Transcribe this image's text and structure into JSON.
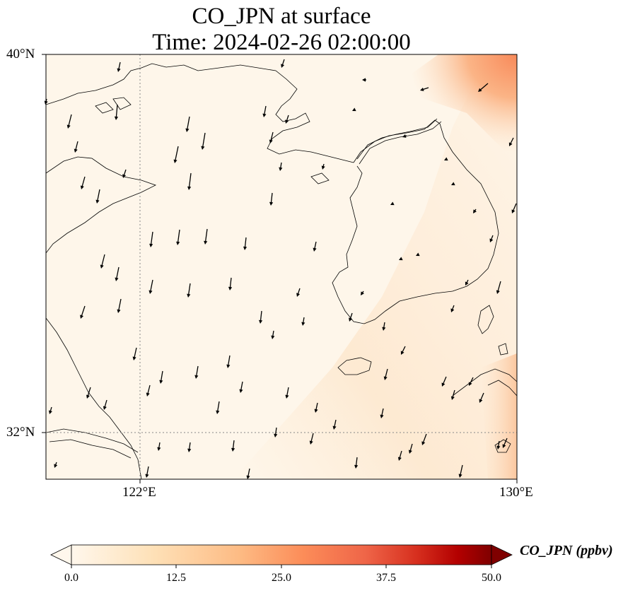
{
  "title": {
    "line1": "CO_JPN at surface",
    "line2": "Time: 2024-02-26 02:00:00"
  },
  "axes": {
    "lat_labels": [
      "40°N",
      "32°N"
    ],
    "lon_labels": [
      "122°E",
      "130°E"
    ],
    "lat_range": [
      31,
      40
    ],
    "lon_range": [
      120,
      130
    ],
    "gridlines": "dotted"
  },
  "colorbar": {
    "label": "CO_JPN (ppbv)",
    "ticks": [
      "0.0",
      "12.5",
      "25.0",
      "37.5",
      "50.0"
    ],
    "range": [
      0,
      50
    ],
    "colormap": "OrRd",
    "extend": "both"
  },
  "colors": {
    "background_low": "#fef6ea",
    "plume_mid": "#fdd4a8",
    "plume_high": "#f88a5a",
    "vectors": "#000000",
    "coastline": "#000000"
  },
  "overlay": {
    "wind_vectors": "quiver, predominantly north-to-south"
  }
}
